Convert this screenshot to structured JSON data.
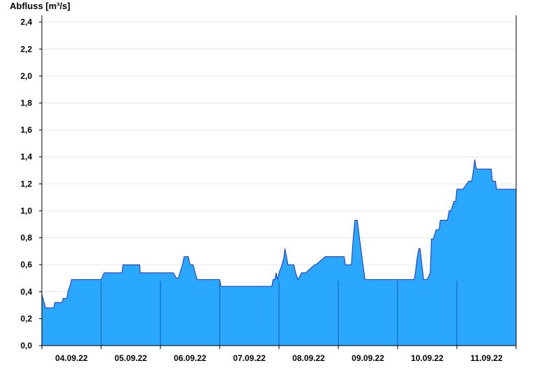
{
  "chart_data": {
    "type": "area",
    "ylabel": "Abfluss [m³/s]",
    "xlabel": "",
    "title": "",
    "ylim": [
      0,
      2.45
    ],
    "yticks": [
      "0,0",
      "0,2",
      "0,4",
      "0,6",
      "0,8",
      "1,0",
      "1,2",
      "1,4",
      "1,6",
      "1,8",
      "2,0",
      "2,2",
      "2,4"
    ],
    "xticks": [
      "04.09.22",
      "05.09.22",
      "06.09.22",
      "07.09.22",
      "08.09.22",
      "09.09.22",
      "10.09.22",
      "11.09.22"
    ],
    "x_range_days": [
      0,
      8
    ],
    "grid": true,
    "fill_color": "#2aa7ff",
    "line_color": "#1f2fbf",
    "series": [
      {
        "x": [
          0.0,
          0.05,
          0.06,
          0.2,
          0.22,
          0.34,
          0.36,
          0.42,
          0.44,
          0.48,
          0.5,
          0.5,
          0.55,
          1.0,
          1.03,
          1.05,
          1.06,
          1.35,
          1.37,
          1.65,
          1.66,
          2.2,
          2.22,
          2.27,
          2.3,
          2.37,
          2.4,
          2.47,
          2.5,
          2.55,
          2.6,
          2.62,
          2.65,
          2.66,
          3.0,
          3.02,
          3.05,
          3.88,
          3.9,
          3.93,
          3.95,
          3.98,
          4.0,
          4.05,
          4.08,
          4.1,
          4.13,
          4.15,
          4.2,
          4.22,
          4.25,
          4.28,
          4.32,
          4.38,
          4.4,
          4.43,
          4.45,
          4.6,
          4.62,
          4.78,
          4.8,
          5.0,
          5.05,
          5.1,
          5.12,
          5.15,
          5.22,
          5.25,
          5.28,
          5.32,
          5.36,
          5.45,
          5.5,
          6.0,
          6.02,
          6.25,
          6.28,
          6.3,
          6.33,
          6.36,
          6.38,
          6.41,
          6.44,
          6.46,
          6.5,
          6.55,
          6.57,
          6.6,
          6.65,
          6.7,
          6.72,
          6.75,
          6.8,
          6.84,
          6.87,
          6.9,
          6.95,
          6.98,
          7.0,
          7.05,
          7.1,
          7.2,
          7.22,
          7.25,
          7.28,
          7.3,
          7.33,
          7.35,
          7.38,
          7.4,
          7.58,
          7.6,
          7.65,
          7.67,
          7.7,
          7.75,
          8.0
        ],
        "y": [
          0.38,
          0.3,
          0.28,
          0.28,
          0.32,
          0.32,
          0.35,
          0.35,
          0.4,
          0.45,
          0.49,
          0.49,
          0.49,
          0.49,
          0.52,
          0.54,
          0.54,
          0.54,
          0.6,
          0.6,
          0.54,
          0.54,
          0.54,
          0.5,
          0.5,
          0.6,
          0.66,
          0.66,
          0.6,
          0.6,
          0.52,
          0.49,
          0.49,
          0.49,
          0.49,
          0.44,
          0.44,
          0.44,
          0.49,
          0.49,
          0.54,
          0.49,
          0.54,
          0.6,
          0.65,
          0.72,
          0.65,
          0.6,
          0.6,
          0.6,
          0.6,
          0.54,
          0.49,
          0.54,
          0.54,
          0.54,
          0.54,
          0.6,
          0.6,
          0.66,
          0.66,
          0.66,
          0.66,
          0.66,
          0.6,
          0.6,
          0.6,
          0.79,
          0.93,
          0.93,
          0.79,
          0.49,
          0.49,
          0.49,
          0.49,
          0.49,
          0.49,
          0.54,
          0.65,
          0.72,
          0.72,
          0.6,
          0.49,
          0.49,
          0.49,
          0.54,
          0.79,
          0.79,
          0.86,
          0.86,
          0.93,
          0.93,
          0.93,
          0.93,
          1.0,
          1.0,
          1.07,
          1.07,
          1.16,
          1.16,
          1.16,
          1.22,
          1.22,
          1.22,
          1.3,
          1.38,
          1.31,
          1.31,
          1.31,
          1.31,
          1.31,
          1.22,
          1.22,
          1.16,
          1.16,
          1.16,
          1.16
        ]
      }
    ]
  }
}
